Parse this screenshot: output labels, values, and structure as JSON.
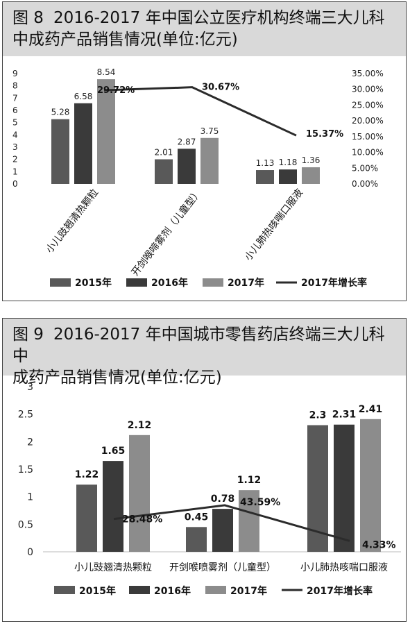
{
  "figures": [
    {
      "number": "图 8",
      "title": "2016-2017 年中国公立医疗机构终端三大儿科中成药产品销售情况(单位:亿元)",
      "title_line1": "2016-2017 年中国公立医疗机构终端三大儿科",
      "title_line2": "中成药产品销售情况(单位:亿元)"
    },
    {
      "number": "图 9",
      "title": "2016-2017 年中国城市零售药店终端三大儿科中成药产品销售情况(单位:亿元)",
      "title_line1": "2016-2017 年中国城市零售药店终端三大儿科中",
      "title_line2": "成药产品销售情况(单位:亿元)"
    }
  ],
  "colors": {
    "s2015": "#595959",
    "s2016": "#3a3a3a",
    "s2017": "#8c8c8c",
    "line": "#2b2b2b"
  },
  "chart_data": [
    {
      "type": "bar",
      "categories": [
        "小儿豉翘清热颗粒",
        "开剑喉啼雾剂（儿童型）",
        "小儿肺热咳喘口服液"
      ],
      "series": [
        {
          "name": "2015年",
          "values": [
            5.28,
            2.01,
            1.13
          ]
        },
        {
          "name": "2016年",
          "values": [
            6.58,
            2.87,
            1.18
          ]
        },
        {
          "name": "2017年",
          "values": [
            8.54,
            3.75,
            1.36
          ]
        }
      ],
      "line_series": {
        "name": "2017年增长率",
        "values": [
          29.72,
          30.67,
          15.37
        ],
        "labels": [
          "29.72%",
          "30.67%",
          "15.37%"
        ]
      },
      "ylim": [
        0,
        9
      ],
      "yticks": [
        "0",
        "1",
        "2",
        "3",
        "4",
        "5",
        "6",
        "7",
        "8",
        "9"
      ],
      "y2lim": [
        0,
        35
      ],
      "y2ticks": [
        "0.00%",
        "5.00%",
        "10.00%",
        "15.00%",
        "20.00%",
        "25.00%",
        "30.00%",
        "35.00%"
      ],
      "bar_labels": [
        [
          "5.28",
          "2.01",
          "1.13"
        ],
        [
          "6.58",
          "2.87",
          "1.18"
        ],
        [
          "8.54",
          "3.75",
          "1.36"
        ]
      ],
      "legend_position": "bottom",
      "grid": false
    },
    {
      "type": "bar",
      "categories": [
        "小儿豉翘清热颗粒",
        "开剑喉喷雾剂（儿童型）",
        "小儿肺热咳喘口服液"
      ],
      "series": [
        {
          "name": "2015年",
          "values": [
            1.22,
            0.45,
            2.3
          ]
        },
        {
          "name": "2016年",
          "values": [
            1.65,
            0.78,
            2.31
          ]
        },
        {
          "name": "2017年",
          "values": [
            2.12,
            1.12,
            2.41
          ]
        }
      ],
      "line_series": {
        "name": "2017年增长率",
        "values": [
          28.48,
          43.59,
          4.33
        ],
        "labels": [
          "28.48%",
          "43.59%",
          "4.33%"
        ]
      },
      "ylim": [
        0,
        3
      ],
      "yticks": [
        "0",
        "0.5",
        "1",
        "1.5",
        "2",
        "2.5",
        "3"
      ],
      "bar_labels": [
        [
          "1.22",
          "0.45",
          "2.3"
        ],
        [
          "1.65",
          "0.78",
          "2.31"
        ],
        [
          "2.12",
          "1.12",
          "2.41"
        ]
      ],
      "legend_position": "bottom",
      "grid": false
    }
  ]
}
